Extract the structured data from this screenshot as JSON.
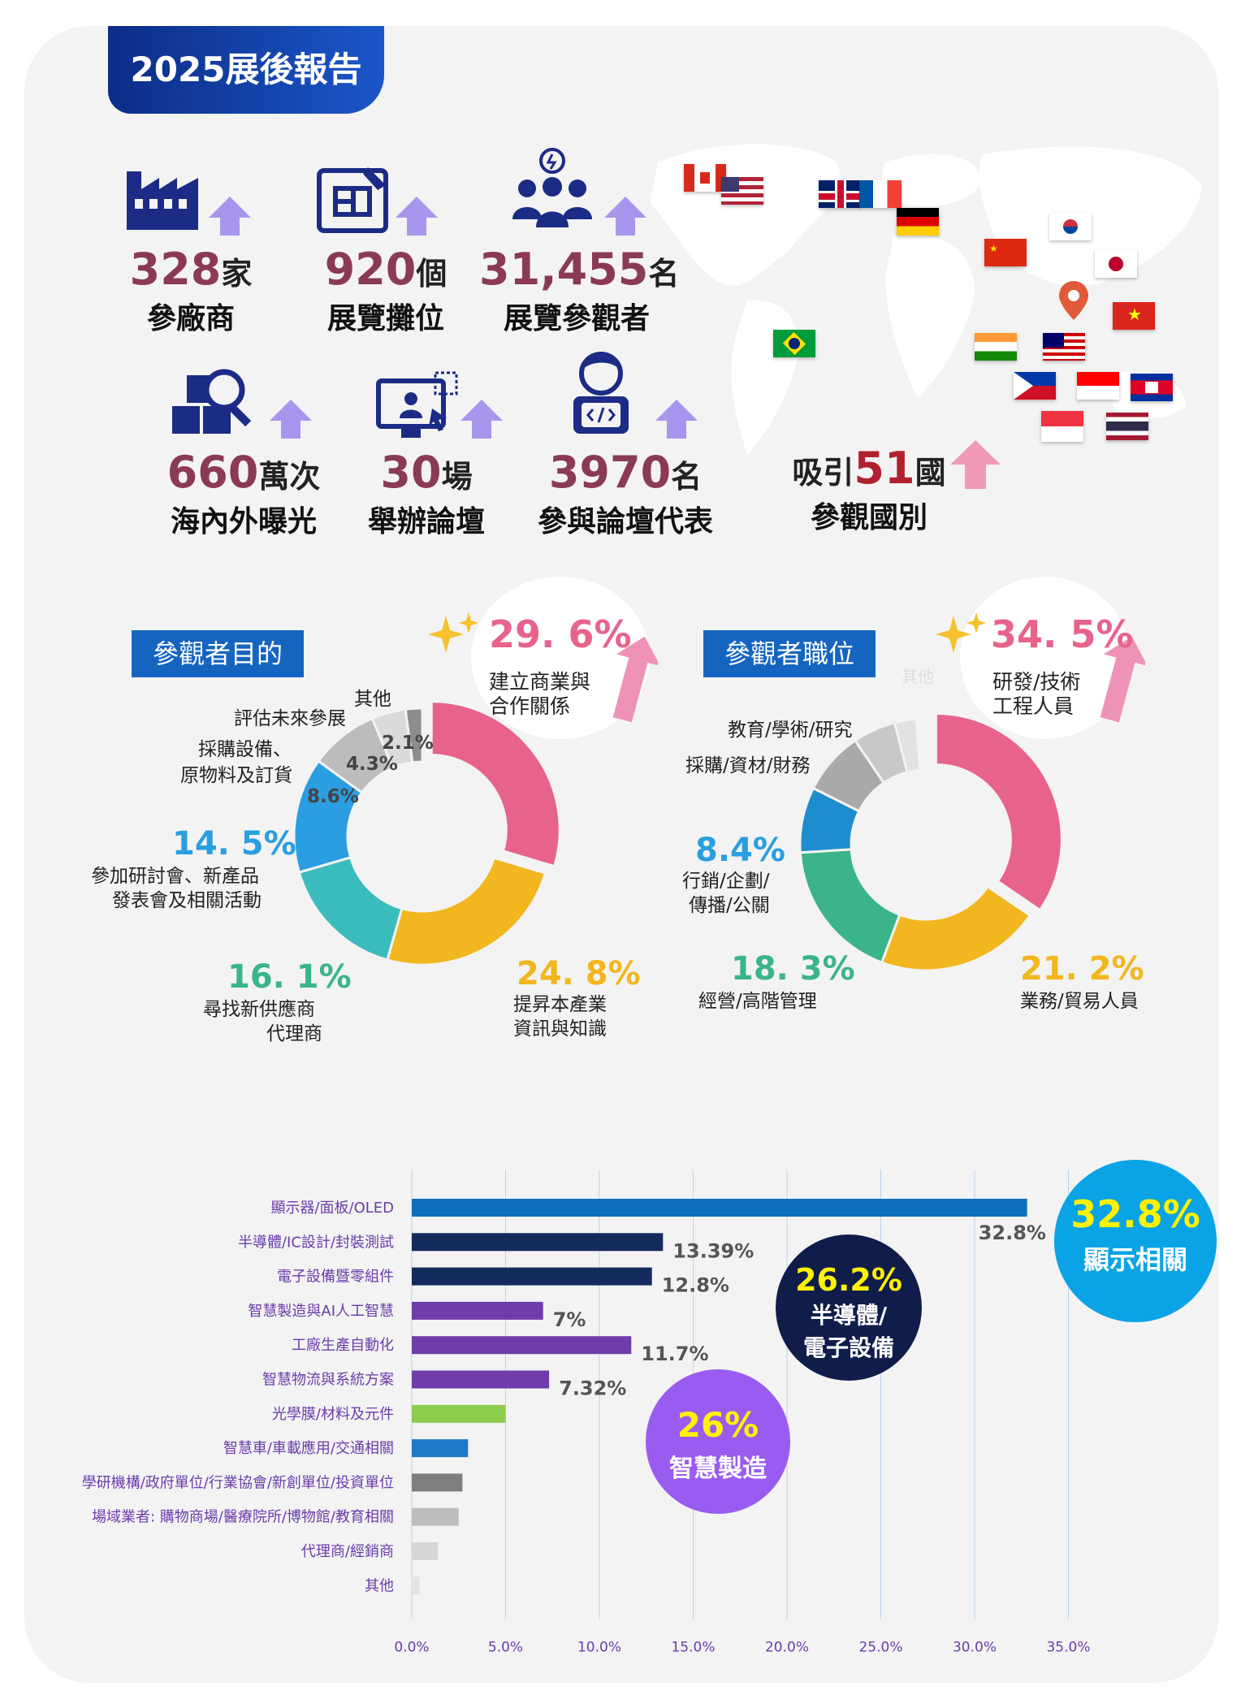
{
  "report_title": "2025展後報告",
  "stats": [
    {
      "number": "328",
      "unit": "家",
      "label": "參廠商",
      "icon": "factory-icon"
    },
    {
      "number": "920",
      "unit": "個",
      "label": "展覽攤位",
      "icon": "blueprint-icon"
    },
    {
      "number": "31,455",
      "unit": "名",
      "label": "展覽參觀者",
      "icon": "people-group-icon"
    },
    {
      "number": "660",
      "unit": "萬次",
      "label": "海內外曝光",
      "icon": "magnifier-boxes-icon"
    },
    {
      "number": "30",
      "unit": "場",
      "label": "舉辦論壇",
      "icon": "monitor-presentation-icon"
    },
    {
      "number": "3970",
      "unit": "名",
      "label": "參與論壇代表",
      "icon": "developer-person-icon"
    }
  ],
  "countries": {
    "prefix": "吸引",
    "number": "51",
    "suffix": "國",
    "label": "參觀國別"
  },
  "flags": [
    "canada",
    "usa",
    "uk",
    "france",
    "germany",
    "south-korea",
    "china",
    "japan",
    "vietnam",
    "brazil",
    "india",
    "malaysia",
    "philippines",
    "indonesia",
    "cambodia",
    "singapore",
    "thailand"
  ],
  "purpose": {
    "heading": "參觀者目的",
    "highlight": {
      "pct": "29. 6%",
      "label_lines": [
        "建立商業與",
        "合作關係"
      ]
    },
    "labels": {
      "seminar_pct": "14. 5%",
      "seminar_lines": [
        "參加研討會、新產品",
        "發表會及相關活動"
      ],
      "supplier_pct": "16. 1%",
      "supplier_lines": [
        "尋找新供應商",
        "代理商"
      ],
      "industry_pct": "24. 8%",
      "industry_lines": [
        "提昇本產業",
        "資訊與知識"
      ],
      "procure_lines": [
        "採購設備、",
        "原物料及訂貨"
      ],
      "procure_pct": "8.6%",
      "future_label": "評估未來參展",
      "future_pct": "4.3%",
      "other_label": "其他",
      "other_pct": "2.1%"
    }
  },
  "position": {
    "heading": "參觀者職位",
    "highlight": {
      "pct": "34. 5%",
      "label_lines": [
        "研發/技術",
        "工程人員"
      ]
    },
    "faded_label": "其他",
    "labels": {
      "edu": "教育/學術/研究",
      "procure": "採購/資材/財務",
      "marketing_pct": "8.4%",
      "marketing_lines": [
        "行銷/企劃/",
        "傳播/公關"
      ],
      "mgmt_pct": "18. 3%",
      "mgmt_label": "經營/高階管理",
      "sales_pct": "21. 2%",
      "sales_label": "業務/貿易人員"
    }
  },
  "chart_data": [
    {
      "type": "pie",
      "title": "參觀者目的",
      "categories": [
        "建立商業與合作關係",
        "提昇本產業資訊與知識",
        "尋找新供應商代理商",
        "參加研討會、新產品發表會及相關活動",
        "採購設備、原物料及訂貨",
        "評估未來參展",
        "其他"
      ],
      "values": [
        29.6,
        24.8,
        16.1,
        14.5,
        8.6,
        4.3,
        2.1
      ],
      "colors": [
        "#e8638c",
        "#f2b61e",
        "#3bbcbc",
        "#2a9ee0",
        "#bcbcbc",
        "#dadada",
        "#8d8d8d"
      ]
    },
    {
      "type": "pie",
      "title": "參觀者職位",
      "categories": [
        "研發/技術工程人員",
        "業務/貿易人員",
        "經營/高階管理",
        "行銷/企劃/傳播/公關",
        "採購/資材/財務",
        "教育/學術/研究",
        "其他",
        "其他"
      ],
      "values": [
        34.5,
        21.2,
        18.3,
        8.4,
        8.1,
        5.5,
        2.8,
        1.2
      ],
      "colors": [
        "#e8638c",
        "#f2b61e",
        "#3bb48a",
        "#1e8dd0",
        "#a9a9a9",
        "#c8c8c8",
        "#e2e2e2",
        "#f3f3f3"
      ]
    },
    {
      "type": "bar",
      "orientation": "horizontal",
      "categories": [
        "顯示器/面板/OLED",
        "半導體/IC設計/封裝測試",
        "電子設備暨零組件",
        "智慧製造與AI人工智慧",
        "工廠生產自動化",
        "智慧物流與系統方案",
        "光學膜/材料及元件",
        "智慧車/車載應用/交通相關",
        "學研機構/政府單位/行業協會/新創單位/投資單位",
        "場域業者: 購物商場/醫療院所/博物館/教育相關",
        "代理商/經銷商",
        "其他"
      ],
      "values": [
        32.8,
        13.39,
        12.8,
        7,
        11.7,
        7.32,
        5,
        3,
        2.7,
        2.5,
        1.4,
        0.4
      ],
      "value_labels": [
        "32.8%",
        "13.39%",
        "12.8%",
        "7%",
        "11.7%",
        "7.32%",
        "",
        "",
        "",
        "",
        "",
        ""
      ],
      "colors": [
        "#0d6fbe",
        "#142a5c",
        "#142a5c",
        "#6f3cab",
        "#6f3cab",
        "#6f3cab",
        "#8ccc4c",
        "#1f78c8",
        "#7f7f7f",
        "#bdbdbd",
        "#d6d6d6",
        "#e3e3e3"
      ],
      "xlim": [
        0,
        35
      ],
      "xticks": [
        "0.0%",
        "5.0%",
        "10.0%",
        "15.0%",
        "20.0%",
        "25.0%",
        "30.0%",
        "35.0%"
      ],
      "grid": true
    }
  ],
  "callouts": [
    {
      "pct": "32.8%",
      "label": "顯示相關",
      "color": "#0aa4e6"
    },
    {
      "pct": "26.2%",
      "label_lines": [
        "半導體/",
        "電子設備"
      ],
      "color": "#101c4a"
    },
    {
      "pct": "26%",
      "label": "智慧製造",
      "color": "#9a5cf0"
    }
  ]
}
